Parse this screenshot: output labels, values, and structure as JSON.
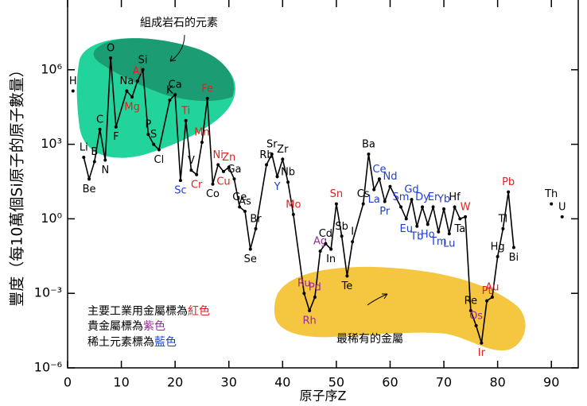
{
  "chart_data": {
    "type": "line",
    "xlabel": "原子序Z",
    "ylabel": "豐度（每10萬個Si原子的原子數量）",
    "xlim": [
      0,
      95
    ],
    "xticks": [
      0,
      10,
      20,
      30,
      40,
      50,
      60,
      70,
      80,
      90
    ],
    "ylim": [
      1e-06,
      1000000000
    ],
    "log_y": true,
    "yticks": [
      {
        "value": 1e-06,
        "label": "10⁻⁶"
      },
      {
        "value": 0.001,
        "label": "10⁻³"
      },
      {
        "value": 1,
        "label": "10⁰"
      },
      {
        "value": 1000,
        "label": "10³"
      },
      {
        "value": 1000000,
        "label": "10⁶"
      }
    ],
    "x": [
      1,
      2,
      3,
      4,
      5,
      6,
      7,
      8,
      9,
      11,
      12,
      13,
      14,
      15,
      16,
      17,
      19,
      20,
      21,
      22,
      23,
      24,
      25,
      26,
      27,
      28,
      29,
      30,
      31,
      32,
      33,
      34,
      35,
      37,
      38,
      39,
      40,
      41,
      42,
      44,
      45,
      46,
      47,
      48,
      49,
      50,
      51,
      52,
      53,
      55,
      56,
      57,
      58,
      59,
      60,
      62,
      63,
      64,
      65,
      66,
      67,
      68,
      69,
      70,
      71,
      72,
      73,
      74,
      75,
      76,
      77,
      78,
      79,
      80,
      81,
      82,
      83,
      84,
      90,
      91,
      92
    ],
    "series": [
      {
        "color": "#000000",
        "values": [
          140000,
          null,
          300,
          40,
          200,
          4000,
          230,
          3000000,
          5000,
          140000,
          80000,
          350000,
          1000000,
          2500,
          1000,
          600,
          60000,
          100000,
          35,
          9000,
          90,
          60,
          1200,
          70000,
          25,
          150,
          80,
          120,
          40,
          3,
          2,
          0.06,
          0.4,
          150,
          400,
          50,
          250,
          30,
          1.5,
          0.001,
          0.0002,
          0.0007,
          0.05,
          0.1,
          0.06,
          4,
          0.2,
          0.005,
          0.12,
          4,
          400,
          15,
          40,
          5,
          20,
          3,
          1,
          6,
          0.5,
          3,
          0.6,
          3,
          0.3,
          2.5,
          0.25,
          3,
          1,
          1.2,
          0.0002,
          5e-05,
          1e-05,
          0.0005,
          0.0007,
          0.03,
          0.4,
          12,
          0.07,
          null,
          4,
          null,
          1.2
        ],
        "point_labels": [
          "H",
          null,
          "Li",
          "Be",
          "B",
          "C",
          "N",
          "O",
          "F",
          "Na",
          "Mg",
          "Al",
          "Si",
          "P",
          "S",
          "Cl",
          "K",
          "Ca",
          "Sc",
          "Ti",
          "V",
          "Cr",
          "Mn",
          "Fe",
          "Co",
          "Ni",
          "Cu",
          "Zn",
          "Ga",
          "Ge",
          "As",
          "Se",
          "Br",
          "Rb",
          "Sr",
          "Y",
          "Zr",
          "Nb",
          "Mo",
          "Ru",
          "Rh",
          "Pd",
          "Ag",
          "Cd",
          "In",
          "Sn",
          "Sb",
          "Te",
          "I",
          "Cs",
          "Ba",
          "La",
          "Ce",
          "Pr",
          "Nd",
          "Sm",
          "Eu",
          "Gd",
          "Tb",
          "Dy",
          "Ho",
          "Er",
          "Tm",
          "Yb",
          "Lu",
          "Hf",
          "Ta",
          "W",
          "Re",
          "Os",
          "Ir",
          "Pt",
          "Au",
          "Hg",
          "Tl",
          "Pb",
          "Bi",
          null,
          "Th",
          null,
          "U"
        ],
        "point_label_colors": [
          "#000000",
          null,
          "#000000",
          "#000000",
          "#000000",
          "#000000",
          "#000000",
          "#000000",
          "#000000",
          "#000000",
          "#e3211c",
          "#e3211c",
          "#000000",
          "#000000",
          "#000000",
          "#000000",
          "#000000",
          "#000000",
          "#1f3fd0",
          "#e3211c",
          "#000000",
          "#e3211c",
          "#e3211c",
          "#e3211c",
          "#000000",
          "#e3211c",
          "#e3211c",
          "#e3211c",
          "#000000",
          "#000000",
          "#000000",
          "#000000",
          "#000000",
          "#000000",
          "#000000",
          "#1f3fd0",
          "#000000",
          "#000000",
          "#e3211c",
          "#9b2a9b",
          "#9b2a9b",
          "#9b2a9b",
          "#9b2a9b",
          "#000000",
          "#000000",
          "#e3211c",
          "#000000",
          "#000000",
          "#000000",
          "#000000",
          "#000000",
          "#1f3fd0",
          "#1f3fd0",
          "#1f3fd0",
          "#1f3fd0",
          "#1f3fd0",
          "#1f3fd0",
          "#1f3fd0",
          "#1f3fd0",
          "#1f3fd0",
          "#1f3fd0",
          "#1f3fd0",
          "#1f3fd0",
          "#1f3fd0",
          "#1f3fd0",
          "#000000",
          "#000000",
          "#e3211c",
          "#000000",
          "#9b2a9b",
          "#e3211c",
          "#e3211c",
          "#e3211c",
          "#000000",
          "#000000",
          "#e3211c",
          "#000000",
          null,
          "#000000",
          null,
          "#000000"
        ]
      }
    ],
    "legend": [
      {
        "text": "主要工業用金屬標為",
        "highlight": "紅色",
        "color": "#e3211c"
      },
      {
        "text": "貴金屬標為",
        "highlight": "紫色",
        "color": "#9b2a9b"
      },
      {
        "text": "稀土元素標為",
        "highlight": "藍色",
        "color": "#1f3fd0"
      }
    ],
    "annotations": [
      {
        "text": "組成岩石的元素"
      },
      {
        "text": "最稀有的金屬"
      }
    ]
  }
}
